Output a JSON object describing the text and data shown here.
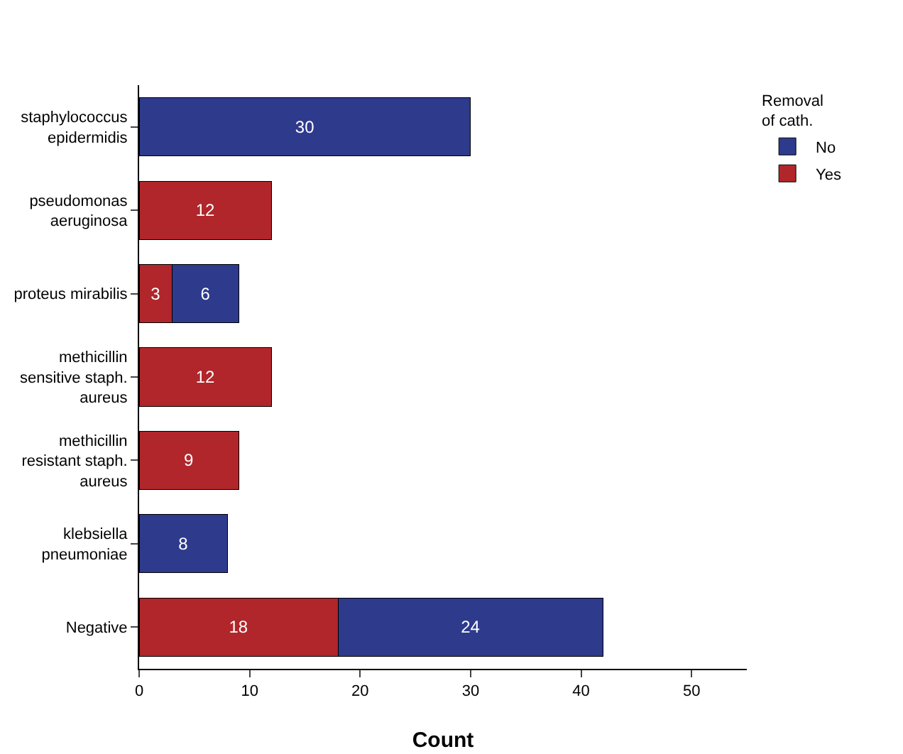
{
  "chart_data": {
    "type": "bar",
    "orientation": "horizontal",
    "stacked": true,
    "xlabel": "Count",
    "legend_title": "Removal of cath.",
    "legend": "top right",
    "categories": [
      "staphylococcus epidermidis",
      "pseudomonas aeruginosa",
      "proteus mirabilis",
      "methicillin sensitive staph. aureus",
      "methicillin resistant staph. aureus",
      "klebsiella pneumoniae",
      "Negative"
    ],
    "series": [
      {
        "name": "Yes",
        "color": "#b0262a",
        "values": [
          null,
          12,
          3,
          12,
          9,
          null,
          18
        ]
      },
      {
        "name": "No",
        "color": "#2e3a8c",
        "values": [
          30,
          null,
          6,
          null,
          null,
          8,
          24
        ]
      }
    ],
    "xlim": [
      0,
      55
    ],
    "xticks": [
      0,
      10,
      20,
      30,
      40,
      50
    ],
    "grid": false,
    "data_labels": true
  }
}
